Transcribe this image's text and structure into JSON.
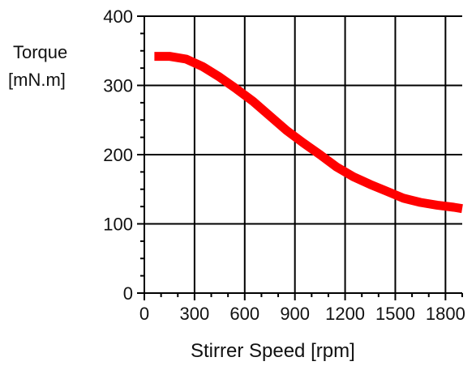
{
  "chart_data": {
    "type": "line",
    "title": "",
    "ylabel_lines": [
      "Torque",
      "[mN.m]"
    ],
    "xlabel": "Stirrer Speed [rpm]",
    "xlim": [
      0,
      1900
    ],
    "ylim": [
      0,
      400
    ],
    "xticks": [
      0,
      300,
      600,
      900,
      1200,
      1500,
      1800
    ],
    "yticks": [
      0,
      100,
      200,
      300,
      400
    ],
    "grid": true,
    "series": [
      {
        "color": "#ff0000",
        "x": [
          60,
          150,
          250,
          350,
          450,
          550,
          650,
          750,
          850,
          950,
          1050,
          1150,
          1250,
          1350,
          1450,
          1550,
          1650,
          1750,
          1850,
          1900
        ],
        "y": [
          342,
          342,
          338,
          327,
          312,
          295,
          277,
          256,
          235,
          217,
          200,
          182,
          168,
          157,
          147,
          137,
          131,
          127,
          124,
          122
        ]
      }
    ]
  }
}
